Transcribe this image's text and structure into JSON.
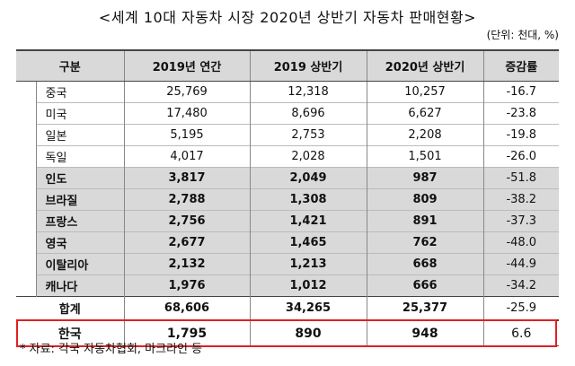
{
  "title": "<세계 10대 자동차 시장 2020년 상반기 자동차 판매현황>",
  "unit": "(단위: 천대, %)",
  "headers": [
    "구분",
    "2019년 연간",
    "2019 상반기",
    "2020년 상반기",
    "증감률"
  ],
  "rows": [
    {
      "name": "중국",
      "y2019": "25,769",
      "h2019": "12,318",
      "h2020": "10,257",
      "rate": "-16.7",
      "highlight": false
    },
    {
      "name": "미국",
      "y2019": "17,480",
      "h2019": "8,696",
      "h2020": "6,627",
      "rate": "-23.8",
      "highlight": false
    },
    {
      "name": "일본",
      "y2019": "5,195",
      "h2019": "2,753",
      "h2020": "2,208",
      "rate": "-19.8",
      "highlight": false
    },
    {
      "name": "독일",
      "y2019": "4,017",
      "h2019": "2,028",
      "h2020": "1,501",
      "rate": "-26.0",
      "highlight": false
    },
    {
      "name": "인도",
      "y2019": "3,817",
      "h2019": "2,049",
      "h2020": "987",
      "rate": "-51.8",
      "highlight": true
    },
    {
      "name": "브라질",
      "y2019": "2,788",
      "h2019": "1,308",
      "h2020": "809",
      "rate": "-38.2",
      "highlight": true
    },
    {
      "name": "프랑스",
      "y2019": "2,756",
      "h2019": "1,421",
      "h2020": "891",
      "rate": "-37.3",
      "highlight": true
    },
    {
      "name": "영국",
      "y2019": "2,677",
      "h2019": "1,465",
      "h2020": "762",
      "rate": "-48.0",
      "highlight": true
    },
    {
      "name": "이탈리아",
      "y2019": "2,132",
      "h2019": "1,213",
      "h2020": "668",
      "rate": "-44.9",
      "highlight": true
    },
    {
      "name": "캐나다",
      "y2019": "1,976",
      "h2019": "1,012",
      "h2020": "666",
      "rate": "-34.2",
      "highlight": true
    }
  ],
  "total": {
    "name": "합계",
    "y2019": "68,606",
    "h2019": "34,265",
    "h2020": "25,377",
    "rate": "-25.9"
  },
  "korea": {
    "name": "한국",
    "y2019": "1,795",
    "h2019": "890",
    "h2020": "948",
    "rate": "6.6"
  },
  "highlight_color": "#d9d9d9",
  "korea_border_color": "#e02020",
  "footnote": "* 자료: 각국 자동차협회, 마크라인 등"
}
